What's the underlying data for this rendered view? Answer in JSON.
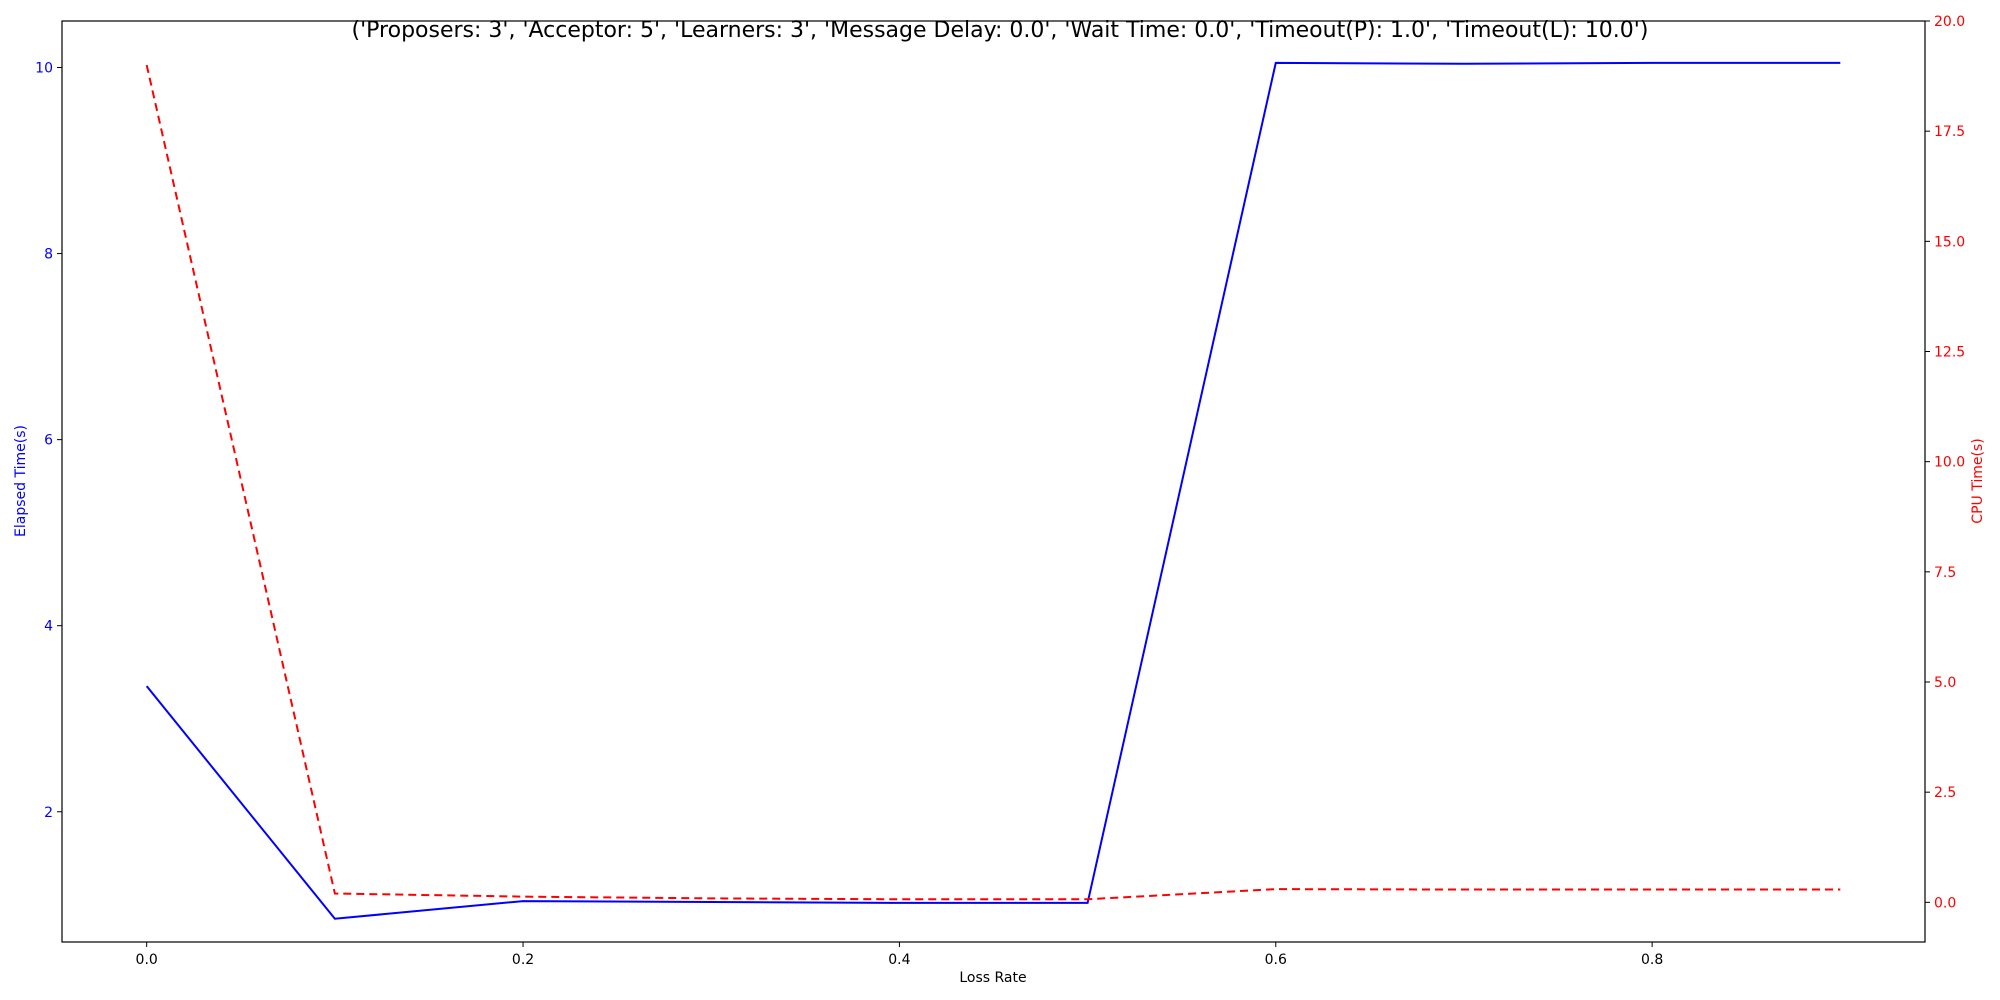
{
  "chart_data": {
    "type": "line",
    "title": "('Proposers: 3', 'Acceptor: 5', 'Learners: 3', 'Message Delay: 0.0', 'Wait Time: 0.0', 'Timeout(P): 1.0', 'Timeout(L): 10.0')",
    "xlabel": "Loss Rate",
    "ylabel_left": "Elapsed Time(s)",
    "ylabel_right": "CPU Time(s)",
    "x": [
      0.0,
      0.1,
      0.2,
      0.3,
      0.4,
      0.5,
      0.6,
      0.7,
      0.8,
      0.9
    ],
    "x_ticks": [
      "0.0",
      "0.2",
      "0.4",
      "0.6",
      "0.8"
    ],
    "xlim": [
      -0.045,
      0.945
    ],
    "left_axis": {
      "ylim": [
        0.6,
        10.5
      ],
      "ticks": [
        "2",
        "4",
        "6",
        "8",
        "10"
      ],
      "color": "#0000ff"
    },
    "right_axis": {
      "ylim": [
        -0.9,
        20.0
      ],
      "ticks": [
        "0.0",
        "2.5",
        "5.0",
        "7.5",
        "10.0",
        "12.5",
        "15.0",
        "17.5",
        "20.0"
      ],
      "color": "#ff0000"
    },
    "series": [
      {
        "axis": "left",
        "style": "solid",
        "color": "#0000ff",
        "values": [
          3.35,
          0.85,
          1.04,
          1.03,
          1.02,
          1.02,
          10.05,
          10.04,
          10.05,
          10.05
        ]
      },
      {
        "axis": "right",
        "style": "dashed",
        "color": "#ff0000",
        "values": [
          19.0,
          0.2,
          0.13,
          0.09,
          0.07,
          0.07,
          0.3,
          0.29,
          0.29,
          0.29
        ]
      }
    ],
    "grid": false,
    "legend": "none"
  }
}
